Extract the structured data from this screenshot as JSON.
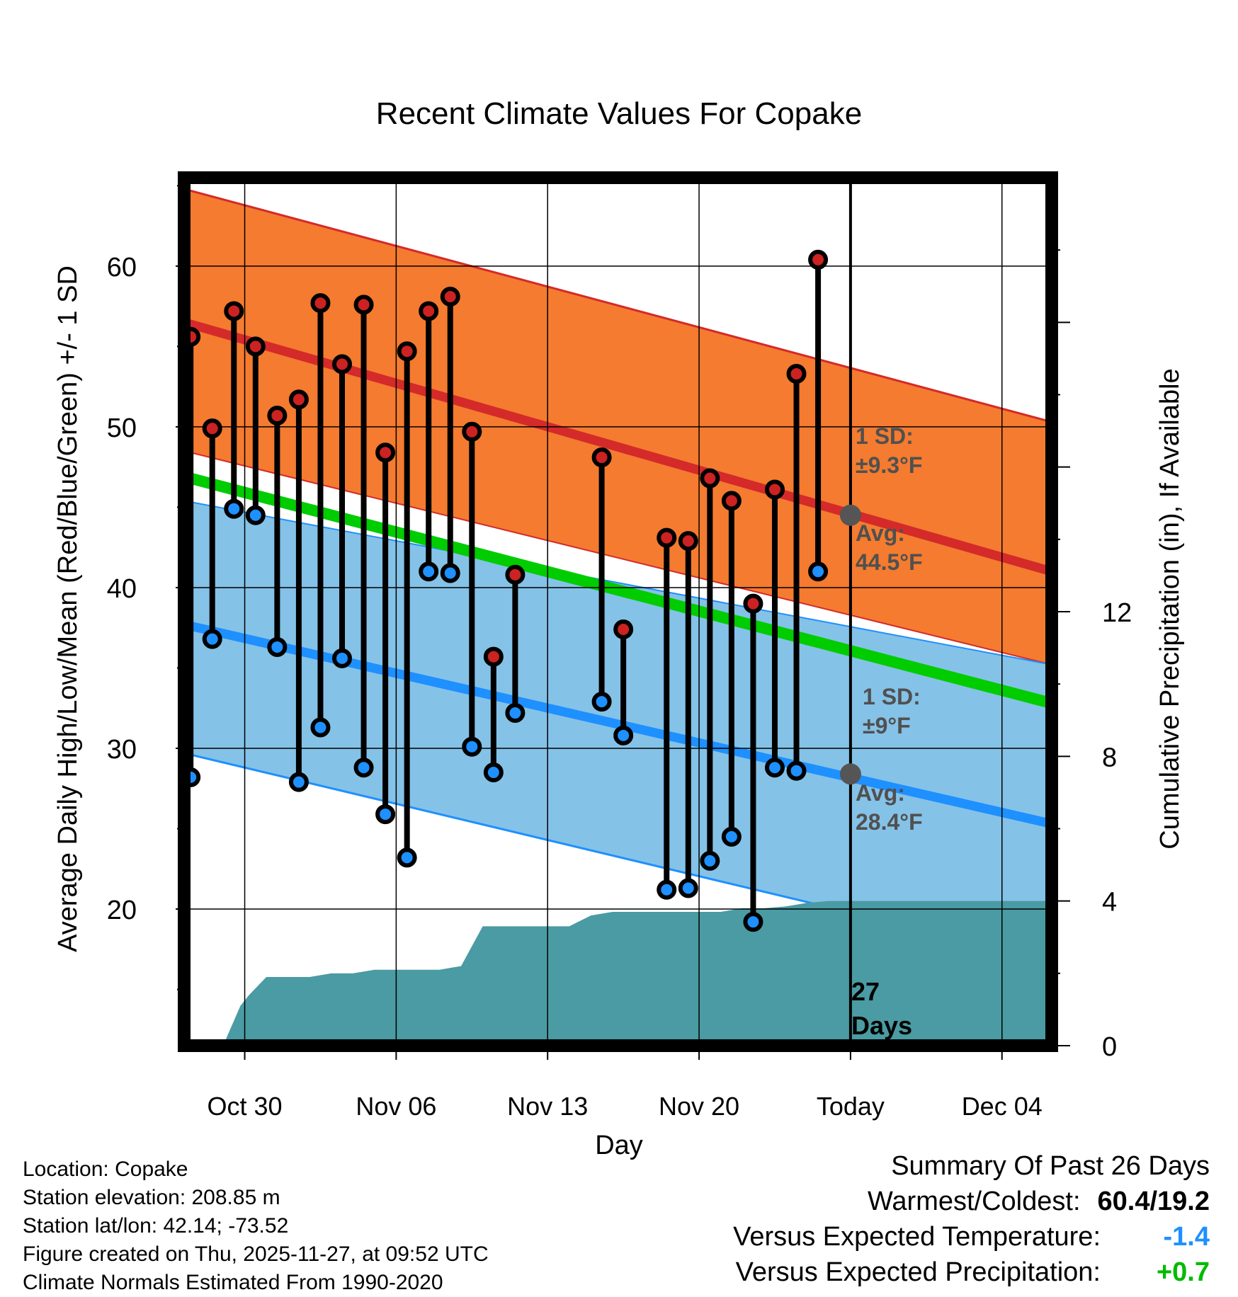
{
  "chart_data": {
    "type": "line",
    "title": "Recent Climate Values For Copake",
    "xlabel": "Day",
    "ylabel": "Average Daily High/Low/Mean (Red/Blue/Green) +/- 1 SD",
    "y2label": "Cumulative Precipitation (in), If Available",
    "ylim": [
      11.5,
      65.5
    ],
    "y2lim": [
      0,
      24
    ],
    "xlim": [
      -0.8,
      39.3
    ],
    "x_tick_labels": [
      {
        "day": 2,
        "label": "Oct 30"
      },
      {
        "day": 9,
        "label": "Nov 06"
      },
      {
        "day": 16,
        "label": "Nov 13"
      },
      {
        "day": 23,
        "label": "Nov 20"
      },
      {
        "day": 30,
        "label": "Today"
      },
      {
        "day": 37,
        "label": "Dec 04"
      }
    ],
    "y_ticks": [
      20,
      30,
      40,
      50,
      60
    ],
    "y2_ticks": [
      0,
      4,
      8,
      12
    ],
    "normals": {
      "high_avg": [
        56.5,
        41.0
      ],
      "high_sd_upper": [
        64.8,
        50.3
      ],
      "high_sd_lower": [
        48.5,
        35.2
      ],
      "low_avg": [
        37.7,
        25.3
      ],
      "low_sd_upper": [
        45.4,
        35.2
      ],
      "low_sd_lower": [
        29.7,
        16.8
      ],
      "mean_avg": [
        46.9,
        32.8
      ],
      "x_range": [
        -0.8,
        39.3
      ]
    },
    "observations": {
      "days": [
        -0.5,
        0.5,
        1.5,
        2.5,
        3.5,
        4.5,
        5.5,
        6.5,
        7.5,
        8.5,
        9.5,
        10.5,
        11.5,
        12.5,
        13.5,
        14.5,
        18.5,
        19.5,
        21.5,
        22.5,
        23.5,
        24.5,
        25.5,
        26.5,
        27.5,
        28.5
      ],
      "highs": [
        55.6,
        49.9,
        57.2,
        55.0,
        50.7,
        51.7,
        57.7,
        53.9,
        57.6,
        48.4,
        54.7,
        57.2,
        58.1,
        49.7,
        35.7,
        40.8,
        48.1,
        37.4,
        43.1,
        42.9,
        46.8,
        45.4,
        39.0,
        46.1,
        53.3,
        60.4
      ],
      "lows": [
        28.2,
        36.8,
        44.9,
        44.5,
        36.3,
        27.9,
        31.3,
        35.6,
        28.8,
        25.9,
        23.2,
        41.0,
        40.9,
        30.1,
        28.5,
        32.2,
        32.9,
        30.8,
        21.2,
        21.3,
        23.0,
        24.5,
        19.2,
        28.8,
        28.6,
        41.0
      ]
    },
    "precipitation": {
      "days": [
        0,
        1,
        1.8,
        2.2,
        3.0,
        5.0,
        6.0,
        7.0,
        8.0,
        9.0,
        10.0,
        11.0,
        12.0,
        13.0,
        15.0,
        17.0,
        18.0,
        19.0,
        22.0,
        23.0,
        24.0,
        25.0,
        26.0,
        27.0,
        28.0,
        29.0,
        30.0,
        39.3
      ],
      "cumulative_in": [
        0,
        0,
        1.1,
        1.4,
        1.9,
        1.9,
        2.0,
        2.0,
        2.1,
        2.1,
        2.1,
        2.1,
        2.2,
        3.3,
        3.3,
        3.3,
        3.6,
        3.7,
        3.7,
        3.7,
        3.7,
        3.8,
        3.8,
        3.85,
        3.95,
        4.0,
        4.0,
        4.0
      ]
    },
    "today_marker": {
      "day": 30,
      "high_avg": 44.5,
      "low_avg": 28.4
    }
  },
  "annotations": {
    "high_sd_title": "1 SD:",
    "high_sd_value": "±9.3°F",
    "high_avg_title": "Avg:",
    "high_avg_value": "44.5°F",
    "low_sd_title": "1 SD:",
    "low_sd_value": "±9°F",
    "low_avg_title": "Avg:",
    "low_avg_value": "28.4°F",
    "days_count": "27",
    "days_word": "Days"
  },
  "footer": {
    "location": "Location: Copake",
    "elevation": "Station elevation: 208.85 m",
    "latlon": "Station lat/lon: 42.14; -73.52",
    "created": "Figure created on Thu, 2025-11-27, at 09:52 UTC",
    "normals": "Climate Normals Estimated From 1990-2020"
  },
  "summary": {
    "title": "Summary Of Past 26 Days",
    "warmest_label": "Warmest/Coldest:",
    "warmest_value": "60.4/19.2",
    "temp_label": "Versus Expected Temperature:",
    "temp_value": "-1.4",
    "precip_label": "Versus Expected Precipitation:",
    "precip_value": "+0.7"
  },
  "colors": {
    "high_band": "#f47b2f",
    "high_avg": "#d42a2a",
    "low_band": "#85c2e7",
    "low_avg": "#1e90ff",
    "mean": "#00cc00",
    "overlap": "#961414",
    "precip": "#4a9ba3",
    "temp_value": "#1e90ff",
    "precip_value": "#00bb00"
  }
}
